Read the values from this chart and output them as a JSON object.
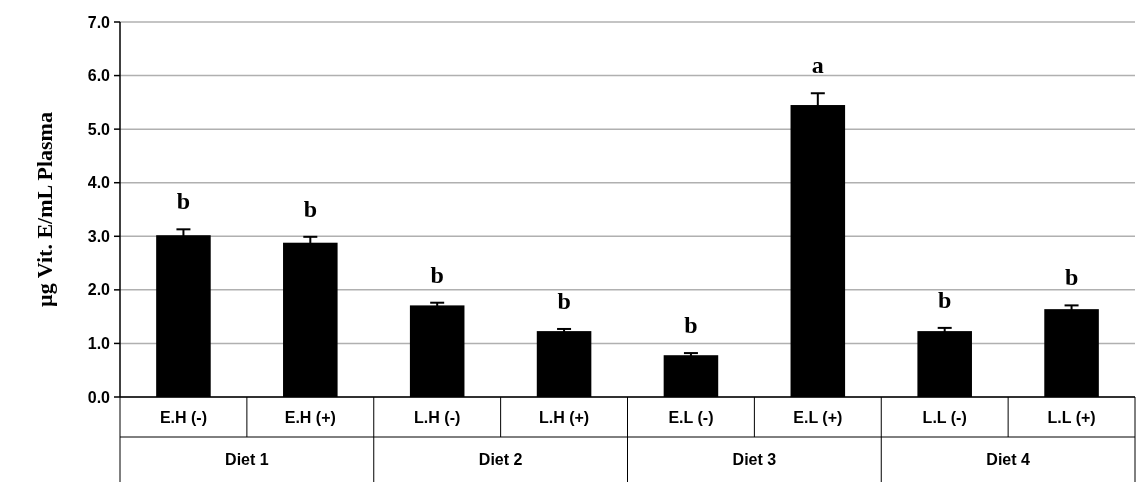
{
  "chart_data": {
    "type": "bar",
    "ylabel": "µg Vit. E/mL Plasma",
    "categories": [
      "E.H (-)",
      "E.H (+)",
      "L.H (-)",
      "L.H (+)",
      "E.L (-)",
      "E.L (+)",
      "L.L (-)",
      "L.L (+)"
    ],
    "values": [
      3.02,
      2.88,
      1.71,
      1.23,
      0.78,
      5.45,
      1.23,
      1.64
    ],
    "errors": [
      0.11,
      0.11,
      0.05,
      0.04,
      0.04,
      0.22,
      0.06,
      0.07
    ],
    "color": "#000000",
    "ylim": [
      0,
      7
    ],
    "yticks": [
      {
        "value": 0,
        "label": "0.0"
      },
      {
        "value": 1,
        "label": "1.0"
      },
      {
        "value": 2,
        "label": "2.0"
      },
      {
        "value": 3,
        "label": "3.0"
      },
      {
        "value": 4,
        "label": "4.0"
      },
      {
        "value": 5,
        "label": "5.0"
      },
      {
        "value": 6,
        "label": "6.0"
      },
      {
        "value": 7,
        "label": "7.0"
      }
    ],
    "grid": "y",
    "annotations": [
      "b",
      "b",
      "b",
      "b",
      "b",
      "a",
      "b",
      "b",
      "Diet 1",
      "Diet 2",
      "Diet 3",
      "Diet 4"
    ]
  }
}
